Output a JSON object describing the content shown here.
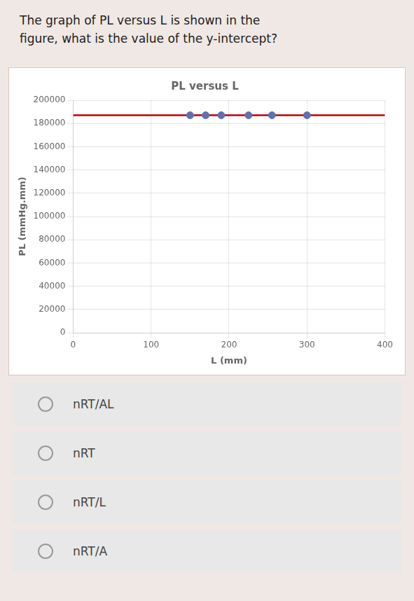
{
  "question": [
    "The graph of PL versus L is shown in the",
    "figure, what is the value of the y-intercept?"
  ],
  "choices": [
    "nRT/AL",
    "nRT",
    "nRT/L",
    "nRT/A"
  ],
  "chart_data": {
    "type": "scatter",
    "title": "PL versus L",
    "xlabel": "L (mm)",
    "ylabel": "PL (mmHg.mm)",
    "xlim": [
      0,
      400
    ],
    "xticks": [
      0,
      100,
      200,
      300,
      400
    ],
    "ylim": [
      0,
      200000
    ],
    "yticks": [
      0,
      20000,
      40000,
      60000,
      80000,
      100000,
      120000,
      140000,
      160000,
      180000,
      200000
    ],
    "grid": true,
    "series": [
      {
        "type": "scatter",
        "color": "#6070b0",
        "marker": "circle",
        "x": [
          150,
          170,
          190,
          225,
          255,
          300
        ],
        "values": [
          187000,
          187000,
          187000,
          187000,
          187000,
          187000
        ]
      },
      {
        "type": "line",
        "color": "#c00000",
        "line_style": "solid",
        "x": [
          0,
          400
        ],
        "values": [
          187000,
          187000
        ]
      }
    ]
  }
}
